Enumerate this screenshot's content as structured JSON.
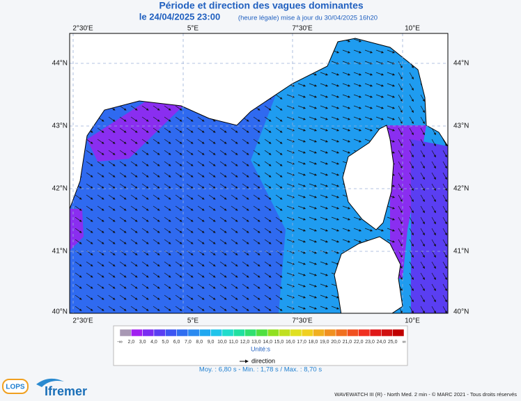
{
  "header": {
    "title": "Période et direction des vagues dominantes",
    "date": "le 24/04/2025 23:00",
    "note": "(heure légale) mise à jour du 30/04/2025 16h20"
  },
  "map": {
    "lon_labels": [
      "2°30'E",
      "5°E",
      "7°30'E",
      "10°E"
    ],
    "lat_labels": [
      "44°N",
      "43°N",
      "42°N",
      "41°N",
      "40°N"
    ]
  },
  "legend": {
    "labels": [
      "-∞",
      "2,0",
      "3,0",
      "4,0",
      "5,0",
      "6,0",
      "7,0",
      "8,0",
      "9,0",
      "10,0",
      "11,0",
      "12,0",
      "13,0",
      "14,0",
      "15,0",
      "16,0",
      "17,0",
      "18,0",
      "19,0",
      "20,0",
      "21,0",
      "22,0",
      "23,0",
      "24,0",
      "25,0",
      "∞"
    ],
    "colors": [
      "#a898b4",
      "#a020f0",
      "#7a2cf2",
      "#5a3ef2",
      "#3c55f2",
      "#2f6ef0",
      "#2a8af0",
      "#20a8f0",
      "#20c4ea",
      "#20dccc",
      "#20e0a0",
      "#30e070",
      "#50e040",
      "#90e020",
      "#c0e020",
      "#e0e020",
      "#f0d020",
      "#f0b020",
      "#f09020",
      "#f07020",
      "#f05020",
      "#f03020",
      "#e01818",
      "#d01010",
      "#c00000"
    ],
    "unit": "Unité:s",
    "direction": "direction",
    "stats": "Moy. : 6,80 s   -   Min. : 1,78 s / Max. : 8,70 s"
  },
  "footer": {
    "credit": "WAVEWATCH III (R) - North Med. 2 min - © MARC 2021 - Tous droits réservés",
    "logos": [
      "LOPS",
      "Ifremer"
    ]
  }
}
